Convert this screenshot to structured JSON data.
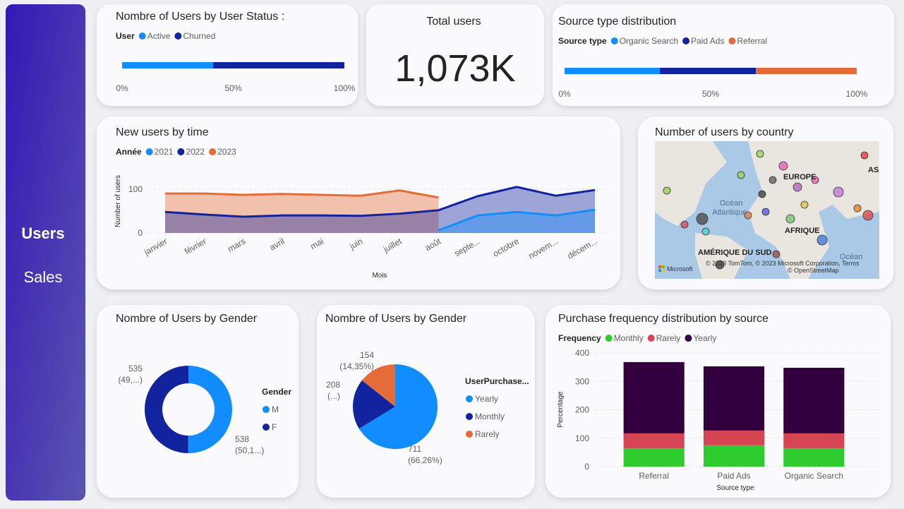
{
  "nav": {
    "items": [
      "Users",
      "Sales"
    ]
  },
  "cards": [
    {
      "title": "Total users",
      "value": "1,073K"
    }
  ],
  "map": {
    "title": "Number of users by country",
    "labels": [
      "EUROPE",
      "Océan",
      "Atlantique",
      "AFRIQUE",
      "AMÉRIQUE DU SUD",
      "Océan",
      "ASI"
    ],
    "logo": "Microsoft",
    "attribution": "© 2023 TomTom, © 2023 Microsoft Corporation, Terms",
    "attribution2": "© OpenStreetMap"
  },
  "chart_data": [
    {
      "type": "hbar",
      "stacked": true,
      "title": "Nombre of Users by User Status :",
      "legend_title": "User",
      "series": [
        {
          "name": "Active",
          "color": "#118DFF",
          "values": [
            41
          ]
        },
        {
          "name": "Churned",
          "color": "#12239E",
          "values": [
            59
          ]
        }
      ],
      "xlim": [
        0,
        100
      ],
      "xticks": [
        {
          "value": 0,
          "label": "0%"
        },
        {
          "value": 50,
          "label": "50%"
        },
        {
          "value": 100,
          "label": "100%"
        }
      ]
    },
    {
      "type": "hbar",
      "stacked": true,
      "title": "Source type distribution",
      "legend_title": "Source type",
      "series": [
        {
          "name": "Organic Search",
          "color": "#118DFF",
          "values": [
            32.6
          ]
        },
        {
          "name": "Paid Ads",
          "color": "#12239E",
          "values": [
            32.9
          ]
        },
        {
          "name": "Referral",
          "color": "#E66C37",
          "values": [
            34.5
          ]
        }
      ],
      "xlim": [
        0,
        100
      ],
      "xticks": [
        {
          "value": 0,
          "label": "0%"
        },
        {
          "value": 50,
          "label": "50%"
        },
        {
          "value": 100,
          "label": "100%"
        }
      ]
    },
    {
      "type": "area",
      "title": "New users by time",
      "legend_title": "Année",
      "y_label": "Number of users",
      "x_label": "Mois",
      "categories": [
        "janvier",
        "février",
        "mars",
        "avril",
        "mai",
        "juin",
        "juillet",
        "août",
        "septe...",
        "octobre",
        "novem...",
        "décem..."
      ],
      "series": [
        {
          "name": "2021",
          "color": "#118DFF",
          "values": [
            null,
            null,
            null,
            null,
            null,
            null,
            null,
            6,
            40,
            48,
            40,
            53
          ]
        },
        {
          "name": "2022",
          "color": "#12239E",
          "values": [
            48,
            42,
            37,
            40,
            40,
            39,
            44,
            52,
            84,
            105,
            85,
            98
          ]
        },
        {
          "name": "2023",
          "color": "#E66C37",
          "values": [
            90,
            90,
            87,
            89,
            87,
            85,
            97,
            81,
            null,
            null,
            null,
            null
          ]
        }
      ],
      "ylim": [
        0,
        145
      ],
      "yticks": [
        0,
        100
      ],
      "grid": true
    },
    {
      "type": "donut",
      "title": "Nombre of Users by Gender",
      "legend_title": "Gender",
      "categories": [
        "M",
        "F"
      ],
      "values": [
        538,
        535
      ],
      "percent_labels": [
        "(50,1...)",
        "(49,...)"
      ],
      "colors": [
        "#118DFF",
        "#12239E"
      ]
    },
    {
      "type": "pie",
      "title": "Nombre of Users by Gender",
      "legend_title": "UserPurchase...",
      "categories": [
        "Yearly",
        "Monthly",
        "Rarely"
      ],
      "values": [
        711,
        208,
        154
      ],
      "percent_labels": [
        "(66,26%)",
        "(...)",
        "(14,35%)"
      ],
      "colors": [
        "#118DFF",
        "#12239E",
        "#E66C37"
      ]
    },
    {
      "type": "bar",
      "stacked": true,
      "title": "Purchase frequency distribution by source",
      "legend_title": "Frequency",
      "y_label": "Percentage",
      "x_label": "Source type",
      "categories": [
        "Referral",
        "Paid Ads",
        "Organic Search"
      ],
      "series": [
        {
          "name": "Monthly",
          "color": "#2DCB2D",
          "values": [
            65,
            75,
            65
          ]
        },
        {
          "name": "Rarely",
          "color": "#D64554",
          "values": [
            52,
            52,
            52
          ]
        },
        {
          "name": "Yearly",
          "color": "#33003D",
          "values": [
            251,
            226,
            231
          ]
        }
      ],
      "ylim": [
        0,
        400
      ],
      "yticks": [
        0,
        100,
        200,
        300,
        400
      ],
      "grid": true
    }
  ]
}
